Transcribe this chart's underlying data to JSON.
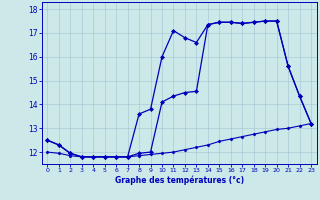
{
  "xlabel": "Graphe des températures (°c)",
  "x_ticks": [
    0,
    1,
    2,
    3,
    4,
    5,
    6,
    7,
    8,
    9,
    10,
    11,
    12,
    13,
    14,
    15,
    16,
    17,
    18,
    19,
    20,
    21,
    22,
    23
  ],
  "y_ticks": [
    12,
    13,
    14,
    15,
    16,
    17,
    18
  ],
  "xlim": [
    -0.5,
    23.5
  ],
  "ylim": [
    11.5,
    18.3
  ],
  "background_color": "#cce8e8",
  "line_color": "#0000bb",
  "grid_color": "#99bbcc",
  "series": [
    {
      "x": [
        0,
        1,
        2,
        3,
        4,
        5,
        6,
        7,
        8,
        9,
        10,
        11,
        12,
        13,
        14,
        15,
        16,
        17,
        18,
        19,
        20,
        21,
        22,
        23
      ],
      "y": [
        12.5,
        12.3,
        11.95,
        11.8,
        11.8,
        11.8,
        11.8,
        11.8,
        13.6,
        13.8,
        16.0,
        17.1,
        16.8,
        16.6,
        17.35,
        17.45,
        17.45,
        17.4,
        17.45,
        17.5,
        17.5,
        15.6,
        14.35,
        13.2
      ],
      "marker": "D",
      "markersize": 2.0,
      "linewidth": 0.9,
      "linestyle": "-"
    },
    {
      "x": [
        0,
        1,
        2,
        3,
        4,
        5,
        6,
        7,
        8,
        9,
        10,
        11,
        12,
        13,
        14,
        15,
        16,
        17,
        18,
        19,
        20,
        21,
        22,
        23
      ],
      "y": [
        12.5,
        12.3,
        11.95,
        11.8,
        11.8,
        11.8,
        11.8,
        11.8,
        11.95,
        12.0,
        14.1,
        14.35,
        14.5,
        14.55,
        17.35,
        17.45,
        17.45,
        17.4,
        17.45,
        17.5,
        17.5,
        15.6,
        14.35,
        13.2
      ],
      "marker": "D",
      "markersize": 2.0,
      "linewidth": 0.9,
      "linestyle": "-"
    },
    {
      "x": [
        0,
        1,
        2,
        3,
        4,
        5,
        6,
        7,
        8,
        9,
        10,
        11,
        12,
        13,
        14,
        15,
        16,
        17,
        18,
        19,
        20,
        21,
        22,
        23
      ],
      "y": [
        12.0,
        11.95,
        11.85,
        11.8,
        11.8,
        11.8,
        11.8,
        11.8,
        11.85,
        11.9,
        11.95,
        12.0,
        12.1,
        12.2,
        12.3,
        12.45,
        12.55,
        12.65,
        12.75,
        12.85,
        12.95,
        13.0,
        13.1,
        13.2
      ],
      "marker": "D",
      "markersize": 1.5,
      "linewidth": 0.8,
      "linestyle": "-"
    }
  ]
}
